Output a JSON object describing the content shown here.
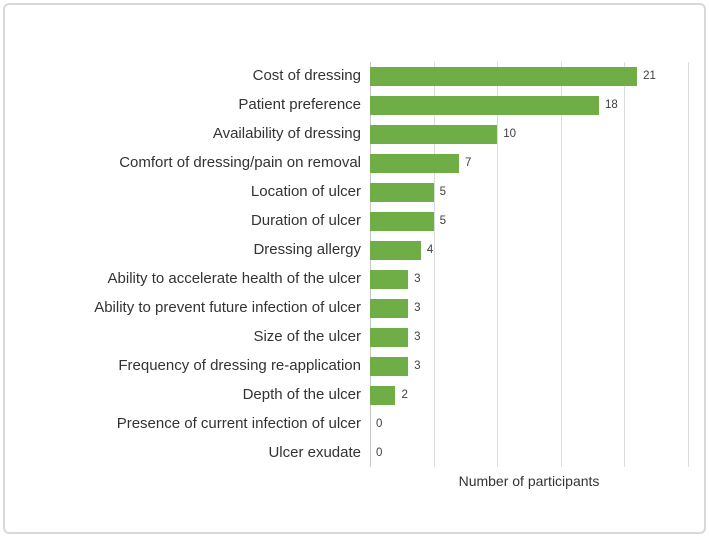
{
  "figure": {
    "background": "#ffffff",
    "border_color": "#d9d9d9"
  },
  "chart_data": {
    "type": "bar",
    "orientation": "horizontal",
    "title": "",
    "xlabel": "Number of participants",
    "ylabel": "",
    "xlim": [
      0,
      25
    ],
    "x_gridlines": [
      0,
      5,
      10,
      15,
      20,
      25
    ],
    "grid": "vertical-only",
    "legend": "none",
    "value_labels": true,
    "categories": [
      "Cost of dressing",
      "Patient preference",
      "Availability of dressing",
      "Comfort of dressing/pain on removal",
      "Location of ulcer",
      "Duration of ulcer",
      "Dressing allergy",
      "Ability to accelerate health of the ulcer",
      "Ability to prevent future infection of ulcer",
      "Size of the ulcer",
      "Frequency of dressing re-application",
      "Depth of the ulcer",
      "Presence of current infection of ulcer",
      "Ulcer exudate"
    ],
    "values": [
      21,
      18,
      10,
      7,
      5,
      5,
      4,
      3,
      3,
      3,
      3,
      2,
      0,
      0
    ]
  },
  "colors": {
    "bar": "#6fad47",
    "gridline": "#dcdcdc",
    "axis_line": "#c6c6c6",
    "label_text": "#333333",
    "value_text": "#404040"
  }
}
